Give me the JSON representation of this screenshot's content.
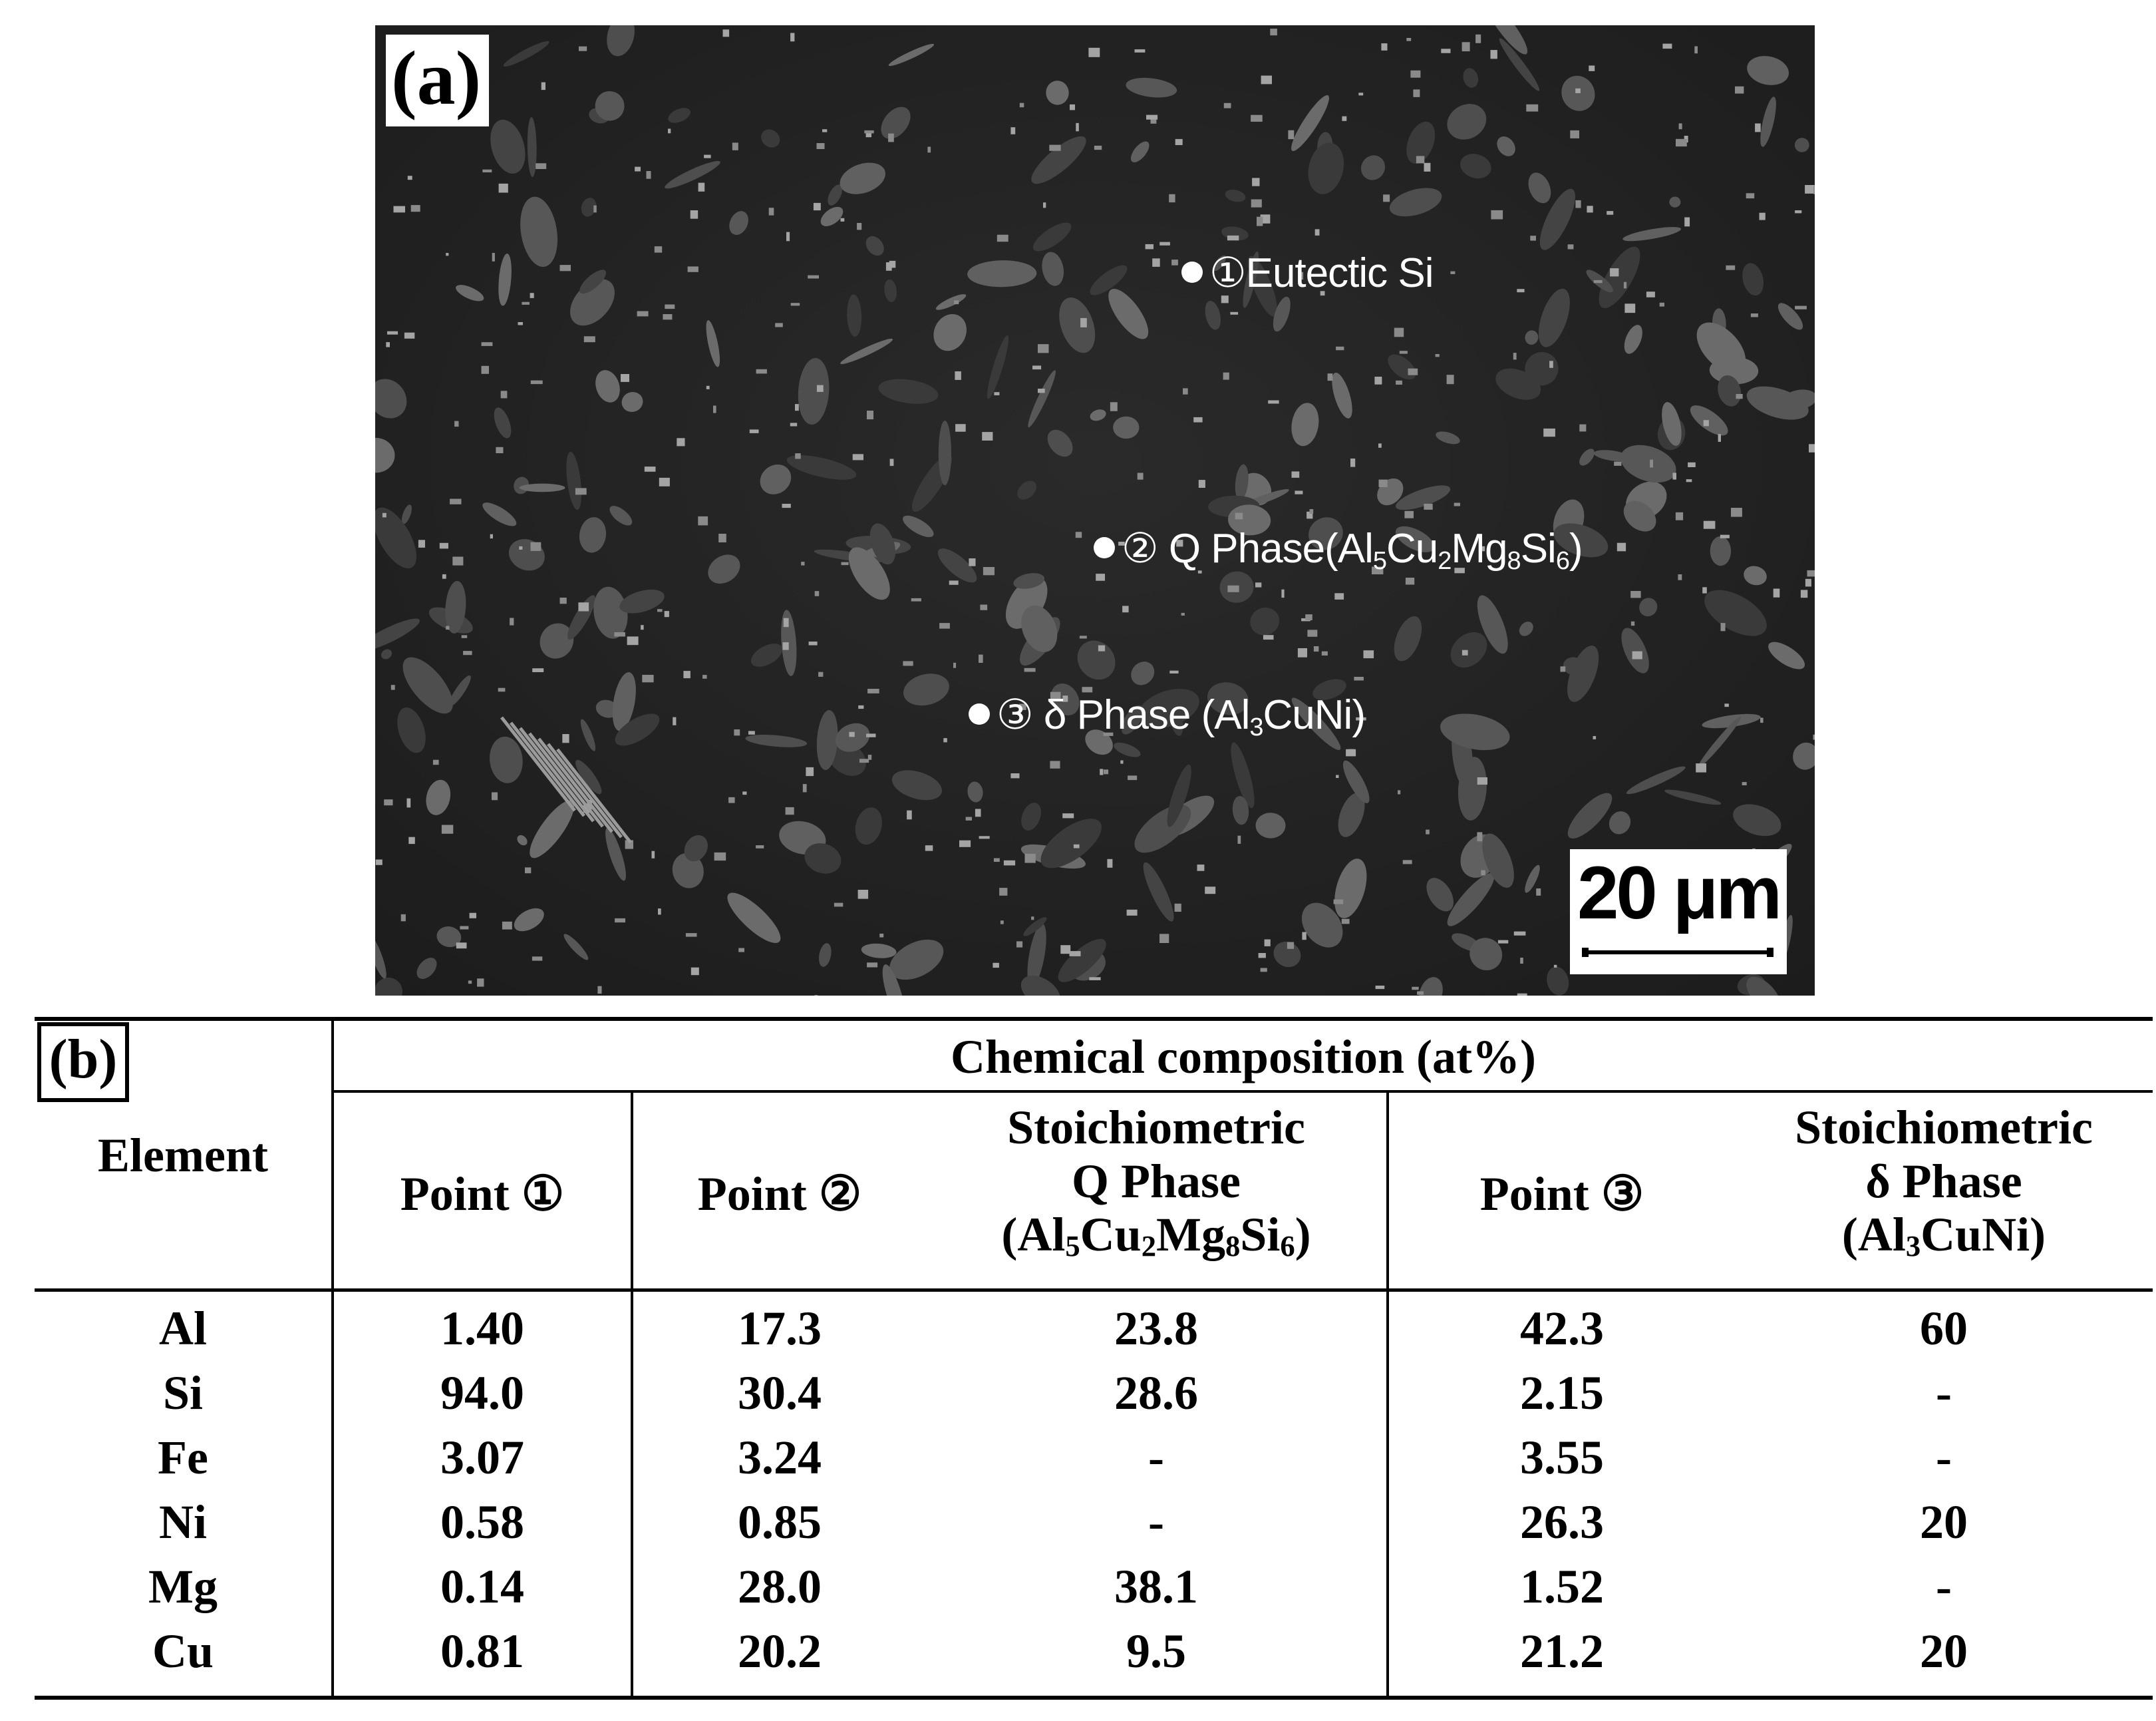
{
  "panel_a": {
    "label": "(a)",
    "annotations": [
      {
        "marker": "①",
        "text": "Eutectic Si"
      },
      {
        "marker": "②",
        "text_parts": [
          "Q Phase(Al",
          "5",
          "Cu",
          "2",
          "Mg",
          "8",
          "Si",
          "6",
          ")"
        ]
      },
      {
        "marker": "③",
        "text_parts": [
          "δ Phase (Al",
          "3",
          "CuNi)"
        ]
      }
    ],
    "scale_bar": "20 μm"
  },
  "panel_b": {
    "label": "(b)",
    "header": {
      "element": "Element",
      "group": "Chemical composition (at%)",
      "point1": "Point  ①",
      "point2": "Point  ②",
      "stoich_q": {
        "line1": "Stoichiometric",
        "line2": "Q Phase",
        "formula_parts": [
          "(Al",
          "5",
          "Cu",
          "2",
          "Mg",
          "8",
          "Si",
          "6",
          ")"
        ]
      },
      "point3": "Point  ③",
      "stoich_d": {
        "line1": "Stoichiometric",
        "line2": "δ Phase",
        "formula_parts": [
          "(Al",
          "3",
          "CuNi)"
        ]
      }
    },
    "rows": [
      {
        "element": "Al",
        "p1": "1.40",
        "p2": "17.3",
        "q": "23.8",
        "p3": "42.3",
        "d": "60"
      },
      {
        "element": "Si",
        "p1": "94.0",
        "p2": "30.4",
        "q": "28.6",
        "p3": "2.15",
        "d": "-"
      },
      {
        "element": "Fe",
        "p1": "3.07",
        "p2": "3.24",
        "q": "-",
        "p3": "3.55",
        "d": "-"
      },
      {
        "element": "Ni",
        "p1": "0.58",
        "p2": "0.85",
        "q": "-",
        "p3": "26.3",
        "d": "20"
      },
      {
        "element": "Mg",
        "p1": "0.14",
        "p2": "28.0",
        "q": "38.1",
        "p3": "1.52",
        "d": "-"
      },
      {
        "element": "Cu",
        "p1": "0.81",
        "p2": "20.2",
        "q": "9.5",
        "p3": "21.2",
        "d": "20"
      }
    ]
  }
}
